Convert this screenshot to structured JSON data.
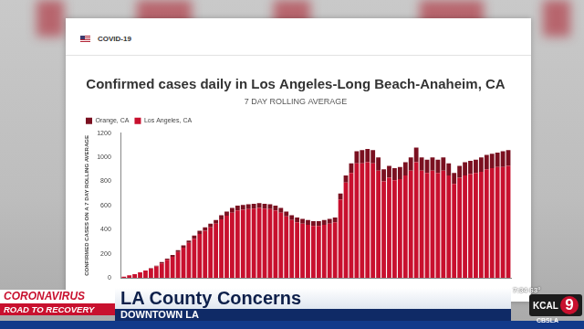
{
  "chart_data": {
    "type": "bar",
    "title": "Confirmed cases daily in Los Angeles-Long Beach-Anaheim, CA",
    "subtitle": "7 DAY ROLLING AVERAGE",
    "y_label": "CONFIRMED CASES ON A 7 DAY ROLLING AVERAGE",
    "categories": [
      null,
      null,
      null,
      null,
      null,
      null,
      null,
      null,
      null,
      null,
      null,
      null,
      null,
      null,
      null,
      null,
      null,
      null,
      null,
      null,
      null,
      null,
      null,
      null,
      null,
      null,
      null,
      null,
      null,
      null,
      null,
      null,
      null,
      null,
      null,
      null,
      null,
      null,
      null,
      null,
      null,
      null,
      null,
      null,
      null,
      null,
      null,
      null,
      null,
      null,
      null,
      null,
      null,
      null,
      null,
      null,
      null,
      null,
      null,
      null,
      null,
      null,
      null,
      null,
      null,
      null,
      null,
      null,
      null,
      null,
      null,
      null
    ],
    "series": [
      {
        "name": "Los Angeles, CA",
        "color": "#c8102e",
        "values": [
          10,
          20,
          30,
          45,
          60,
          75,
          95,
          120,
          150,
          175,
          215,
          250,
          290,
          325,
          365,
          390,
          420,
          450,
          485,
          515,
          540,
          560,
          565,
          570,
          575,
          580,
          575,
          570,
          560,
          540,
          510,
          480,
          460,
          450,
          440,
          430,
          430,
          440,
          450,
          460,
          650,
          790,
          870,
          950,
          950,
          960,
          950,
          890,
          800,
          830,
          810,
          820,
          850,
          890,
          960,
          890,
          870,
          890,
          870,
          890,
          850,
          780,
          830,
          850,
          860,
          870,
          880,
          900,
          910,
          920,
          920,
          930
        ]
      },
      {
        "name": "Orange, CA",
        "color": "#7a1020",
        "values": [
          0,
          0,
          0,
          0,
          0,
          5,
          5,
          10,
          10,
          15,
          15,
          20,
          20,
          25,
          25,
          30,
          30,
          30,
          35,
          35,
          40,
          40,
          40,
          40,
          40,
          40,
          40,
          40,
          40,
          40,
          40,
          40,
          40,
          40,
          40,
          40,
          40,
          40,
          40,
          40,
          50,
          60,
          80,
          100,
          110,
          110,
          110,
          110,
          100,
          100,
          100,
          100,
          110,
          110,
          120,
          110,
          110,
          110,
          110,
          110,
          100,
          90,
          100,
          110,
          110,
          110,
          120,
          120,
          120,
          120,
          130,
          130
        ]
      }
    ],
    "ylim": [
      0,
      1200
    ],
    "yticks": [
      0,
      200,
      400,
      600,
      800,
      1000,
      1200
    ],
    "grid": false,
    "stacked": true,
    "legend": "top-left",
    "tick_labels": "y"
  },
  "overlay": {
    "card_label": "COVID-19",
    "show_top": "CORONAVIRUS",
    "show_bottom": "ROAD TO RECOVERY",
    "headline": "LA County Concerns",
    "location": "DOWNTOWN LA",
    "time": "7:34",
    "temperature": "63°",
    "station": "KCAL",
    "channel": "9",
    "website": "CBSLA"
  }
}
